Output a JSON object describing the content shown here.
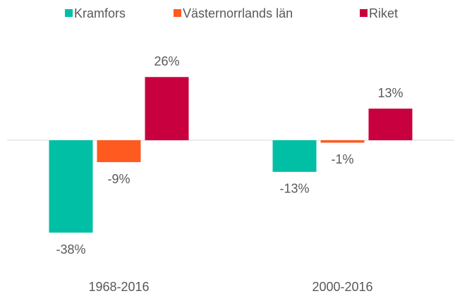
{
  "chart_data": {
    "type": "bar",
    "categories": [
      "1968-2016",
      "2000-2016"
    ],
    "series": [
      {
        "name": "Kramfors",
        "color": "#00bfa5",
        "values": [
          -38,
          -13
        ],
        "value_labels": [
          "-38%",
          "-13%"
        ]
      },
      {
        "name": "Västernorrlands län",
        "color": "#ff5a1f",
        "values": [
          -9,
          -1
        ],
        "value_labels": [
          "-9%",
          "-1%"
        ]
      },
      {
        "name": "Riket",
        "color": "#c8003f",
        "values": [
          26,
          13
        ],
        "value_labels": [
          "26%",
          "13%"
        ]
      }
    ],
    "ylim": [
      -40,
      30
    ],
    "grid": false,
    "legend": "top"
  }
}
